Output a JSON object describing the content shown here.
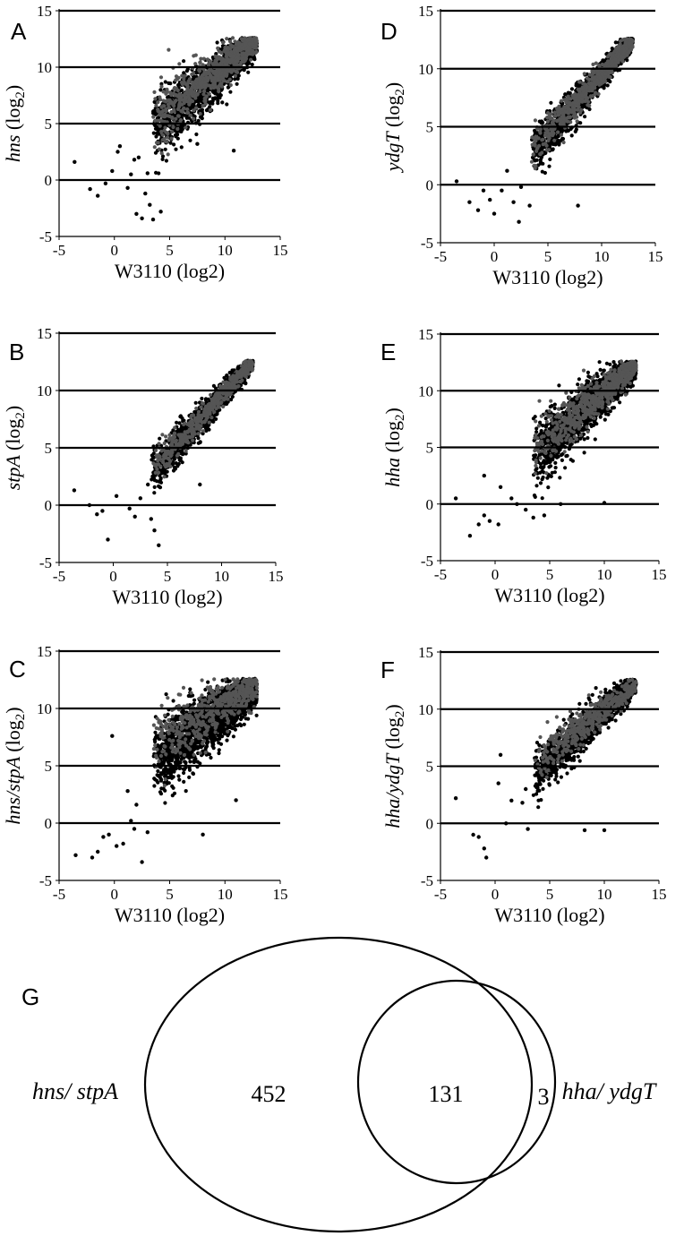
{
  "chart_data": [
    {
      "type": "scatter",
      "panel": "A",
      "xlabel": "W3110 (log2)",
      "ylabel": "hns",
      "ylabel_suffix": "(log2)",
      "xlim": [
        -5,
        15
      ],
      "ylim": [
        -5,
        15
      ],
      "xticks": [
        "-5",
        "0",
        "5",
        "10",
        "15"
      ],
      "yticks": [
        "-5",
        "0",
        "5",
        "10",
        "15"
      ],
      "gridlines_y": [
        0,
        5,
        10,
        15
      ],
      "series": [
        {
          "color": "#000000",
          "n": 1400,
          "spread": 1.4,
          "intercept": 1.6,
          "slope": 0.82,
          "outliers": [
            [
              -3.6,
              1.6
            ],
            [
              -2.2,
              -0.8
            ],
            [
              -1.5,
              -1.4
            ],
            [
              -0.8,
              -0.3
            ],
            [
              -0.2,
              0.8
            ],
            [
              0.3,
              2.5
            ],
            [
              0.5,
              3.0
            ],
            [
              1.2,
              -0.7
            ],
            [
              1.5,
              0.5
            ],
            [
              1.8,
              1.8
            ],
            [
              2.0,
              -3.0
            ],
            [
              2.5,
              -3.4
            ],
            [
              2.8,
              -1.2
            ],
            [
              3.2,
              -2.2
            ],
            [
              3.5,
              -3.5
            ],
            [
              4.2,
              -2.8
            ],
            [
              2.2,
              2.0
            ],
            [
              3.0,
              0.6
            ],
            [
              10.8,
              2.6
            ],
            [
              7.5,
              3.2
            ]
          ]
        },
        {
          "color": "#555555",
          "n": 700,
          "spread": 1.3,
          "intercept": 2.4,
          "slope": 0.78,
          "outliers": []
        }
      ]
    },
    {
      "type": "scatter",
      "panel": "B",
      "xlabel": "W3110 (log2)",
      "ylabel": "stpA",
      "ylabel_suffix": "(log2)",
      "xlim": [
        -5,
        15
      ],
      "ylim": [
        -5,
        15
      ],
      "xticks": [
        "-5",
        "0",
        "5",
        "10",
        "15"
      ],
      "yticks": [
        "-5",
        "0",
        "5",
        "10",
        "15"
      ],
      "gridlines_y": [
        0,
        5,
        10,
        15
      ],
      "series": [
        {
          "color": "#000000",
          "n": 1200,
          "spread": 0.9,
          "intercept": -1.0,
          "slope": 1.05,
          "outliers": [
            [
              -3.6,
              1.3
            ],
            [
              -2.2,
              0.0
            ],
            [
              -1.5,
              -0.8
            ],
            [
              -1.0,
              -0.5
            ],
            [
              -0.5,
              -3.0
            ],
            [
              0.3,
              0.8
            ],
            [
              1.5,
              -0.3
            ],
            [
              2.0,
              -1.0
            ],
            [
              3.5,
              -1.2
            ],
            [
              3.8,
              -2.2
            ],
            [
              4.2,
              -3.5
            ],
            [
              3.2,
              1.8
            ],
            [
              8.0,
              1.8
            ],
            [
              2.5,
              0.6
            ]
          ]
        },
        {
          "color": "#555555",
          "n": 500,
          "spread": 0.7,
          "intercept": -0.6,
          "slope": 1.02,
          "outliers": []
        }
      ]
    },
    {
      "type": "scatter",
      "panel": "C",
      "xlabel": "W3110 (log2)",
      "ylabel": "hns/stpA",
      "ylabel_suffix": "(log2)",
      "xlim": [
        -5,
        15
      ],
      "ylim": [
        -5,
        15
      ],
      "xticks": [
        "-5",
        "0",
        "5",
        "10",
        "15"
      ],
      "yticks": [
        "-5",
        "0",
        "5",
        "10",
        "15"
      ],
      "gridlines_y": [
        0,
        5,
        10,
        15
      ],
      "series": [
        {
          "color": "#000000",
          "n": 1700,
          "spread": 1.6,
          "intercept": 2.8,
          "slope": 0.7,
          "outliers": [
            [
              -3.5,
              -2.8
            ],
            [
              -2.0,
              -3.0
            ],
            [
              -1.5,
              -2.5
            ],
            [
              -1.0,
              -1.2
            ],
            [
              -0.5,
              -1.0
            ],
            [
              0.2,
              -2.0
            ],
            [
              0.8,
              -1.8
            ],
            [
              1.5,
              0.2
            ],
            [
              1.8,
              -0.5
            ],
            [
              2.5,
              -3.4
            ],
            [
              3.0,
              -0.8
            ],
            [
              2.0,
              1.6
            ],
            [
              1.2,
              2.8
            ],
            [
              8.0,
              -1.0
            ],
            [
              11.0,
              2.0
            ],
            [
              -0.2,
              7.6
            ]
          ]
        },
        {
          "color": "#555555",
          "n": 500,
          "spread": 1.5,
          "intercept": 5.5,
          "slope": 0.5,
          "outliers": []
        }
      ]
    },
    {
      "type": "scatter",
      "panel": "D",
      "xlabel": "W3110 (log2)",
      "ylabel": "ydgT",
      "ylabel_suffix": "(log2)",
      "xlim": [
        -5,
        15
      ],
      "ylim": [
        -5,
        15
      ],
      "xticks": [
        "-5",
        "0",
        "5",
        "10",
        "15"
      ],
      "yticks": [
        "-5",
        "0",
        "5",
        "10",
        "15"
      ],
      "gridlines_y": [
        0,
        5,
        10,
        15
      ],
      "series": [
        {
          "color": "#000000",
          "n": 1300,
          "spread": 0.9,
          "intercept": -1.0,
          "slope": 1.05,
          "outliers": [
            [
              -3.5,
              0.3
            ],
            [
              -2.3,
              -1.5
            ],
            [
              -1.5,
              -2.2
            ],
            [
              -1.0,
              -0.5
            ],
            [
              -0.4,
              -1.3
            ],
            [
              0.0,
              -2.5
            ],
            [
              0.7,
              -0.5
            ],
            [
              1.2,
              1.2
            ],
            [
              1.8,
              -1.5
            ],
            [
              2.3,
              -3.2
            ],
            [
              2.5,
              -0.2
            ],
            [
              3.3,
              -1.8
            ],
            [
              7.8,
              -1.8
            ]
          ]
        },
        {
          "color": "#555555",
          "n": 600,
          "spread": 0.8,
          "intercept": -0.4,
          "slope": 1.0,
          "outliers": []
        }
      ]
    },
    {
      "type": "scatter",
      "panel": "E",
      "xlabel": "W3110 (log2)",
      "ylabel": "hha",
      "ylabel_suffix": "(log2)",
      "xlim": [
        -5,
        15
      ],
      "ylim": [
        -5,
        15
      ],
      "xticks": [
        "-5",
        "0",
        "5",
        "10",
        "15"
      ],
      "yticks": [
        "-5",
        "0",
        "5",
        "10",
        "15"
      ],
      "gridlines_y": [
        0,
        5,
        10,
        15
      ],
      "series": [
        {
          "color": "#000000",
          "n": 1500,
          "spread": 1.4,
          "intercept": 1.2,
          "slope": 0.85,
          "outliers": [
            [
              -3.6,
              0.5
            ],
            [
              -2.3,
              -2.8
            ],
            [
              -1.5,
              -1.8
            ],
            [
              -1.0,
              -1.0
            ],
            [
              -0.5,
              -1.5
            ],
            [
              0.3,
              -1.8
            ],
            [
              0.5,
              1.5
            ],
            [
              1.5,
              0.5
            ],
            [
              2.0,
              0.0
            ],
            [
              2.8,
              -0.5
            ],
            [
              3.5,
              -1.2
            ],
            [
              4.5,
              -1.0
            ],
            [
              6.0,
              0.0
            ],
            [
              10.0,
              0.1
            ],
            [
              -1.0,
              2.5
            ]
          ]
        },
        {
          "color": "#555555",
          "n": 600,
          "spread": 1.2,
          "intercept": 2.2,
          "slope": 0.78,
          "outliers": []
        }
      ]
    },
    {
      "type": "scatter",
      "panel": "F",
      "xlabel": "W3110 (log2)",
      "ylabel": "hha/ydgT",
      "ylabel_suffix": "(log2)",
      "xlim": [
        -5,
        15
      ],
      "ylim": [
        -5,
        15
      ],
      "xticks": [
        "-5",
        "0",
        "5",
        "10",
        "15"
      ],
      "yticks": [
        "-5",
        "0",
        "5",
        "10",
        "15"
      ],
      "gridlines_y": [
        0,
        5,
        10,
        15
      ],
      "series": [
        {
          "color": "#000000",
          "n": 1400,
          "spread": 1.0,
          "intercept": 1.0,
          "slope": 0.88,
          "outliers": [
            [
              -3.6,
              2.2
            ],
            [
              -2.0,
              -1.0
            ],
            [
              -1.5,
              -1.2
            ],
            [
              -1.0,
              -2.2
            ],
            [
              -0.8,
              -3.0
            ],
            [
              0.3,
              3.5
            ],
            [
              1.0,
              0.0
            ],
            [
              1.5,
              2.0
            ],
            [
              2.5,
              1.8
            ],
            [
              3.0,
              -0.5
            ],
            [
              2.8,
              3.0
            ],
            [
              8.2,
              -0.6
            ],
            [
              10.0,
              -0.6
            ],
            [
              0.5,
              6.0
            ]
          ]
        },
        {
          "color": "#555555",
          "n": 450,
          "spread": 0.9,
          "intercept": 2.8,
          "slope": 0.72,
          "outliers": []
        }
      ]
    }
  ],
  "figure": {
    "panel_letters": [
      "A",
      "B",
      "C",
      "D",
      "E",
      "F",
      "G"
    ]
  },
  "venn": {
    "panel": "G",
    "left_set_label": "hns/ stpA",
    "right_set_label": "hha/ ydgT",
    "only_left": "452",
    "both": "131",
    "only_right": "3"
  }
}
